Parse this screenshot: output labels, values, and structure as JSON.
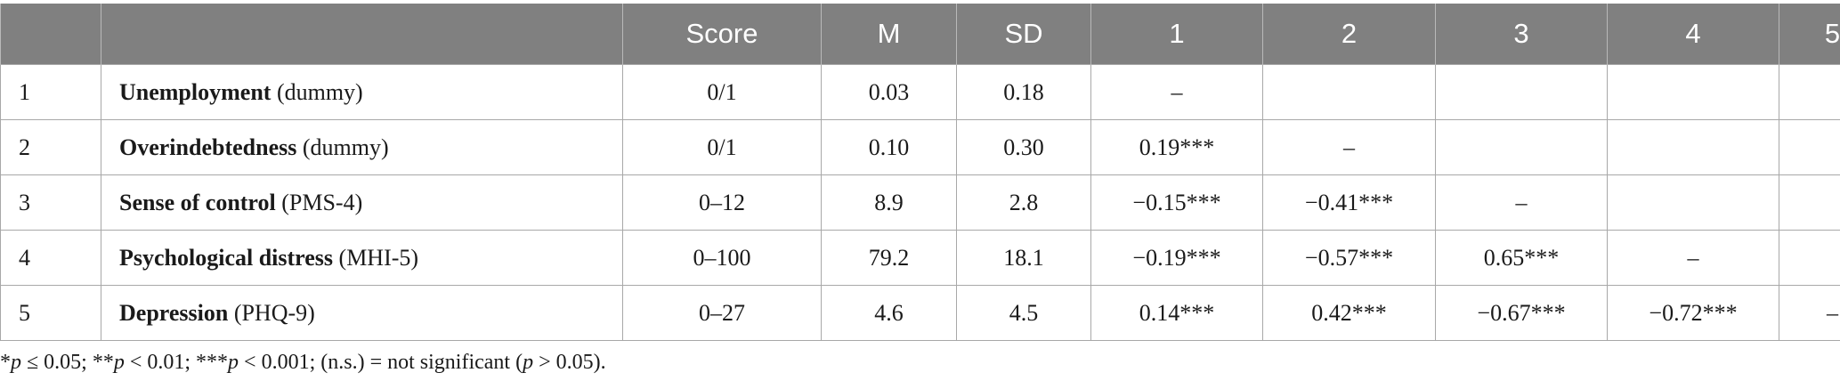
{
  "header": [
    "",
    "",
    "Score",
    "M",
    "SD",
    "1",
    "2",
    "3",
    "4",
    "5"
  ],
  "rows": [
    {
      "num": "1",
      "var_bold": "Unemployment",
      "var_suffix": " (dummy)",
      "cells": [
        "0/1",
        "0.03",
        "0.18",
        "–",
        "",
        "",
        "",
        ""
      ]
    },
    {
      "num": "2",
      "var_bold": "Overindebtedness",
      "var_suffix": " (dummy)",
      "cells": [
        "0/1",
        "0.10",
        "0.30",
        "0.19***",
        "–",
        "",
        "",
        ""
      ]
    },
    {
      "num": "3",
      "var_bold": "Sense of control",
      "var_suffix": " (PMS-4)",
      "cells": [
        "0–12",
        "8.9",
        "2.8",
        "−0.15***",
        "−0.41***",
        "–",
        "",
        ""
      ]
    },
    {
      "num": "4",
      "var_bold": "Psychological distress",
      "var_suffix": " (MHI-5)",
      "cells": [
        "0–100",
        "79.2",
        "18.1",
        "−0.19***",
        "−0.57***",
        "0.65***",
        "–",
        ""
      ]
    },
    {
      "num": "5",
      "var_bold": "Depression",
      "var_suffix": " (PHQ-9)",
      "cells": [
        "0–27",
        "4.6",
        "4.5",
        "0.14***",
        "0.42***",
        "−0.67***",
        "−0.72***",
        "–"
      ]
    }
  ],
  "footnote": {
    "p1_prefix": "*",
    "p1_p": "p",
    "p1_rest": " ≤ 0.05; **",
    "p2_p": "p",
    "p2_rest": " < 0.01; ***",
    "p3_p": "p",
    "p3_rest": " < 0.001; (n.s.) = not significant (",
    "p4_p": "p",
    "p4_rest": " > 0.05)."
  }
}
